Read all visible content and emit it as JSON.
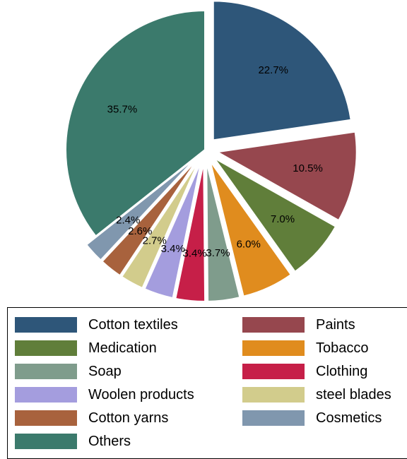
{
  "chart_data": {
    "type": "pie",
    "slices": [
      {
        "label": "Cotton textiles",
        "value": 22.7,
        "display": "22.7%",
        "color": "#2e5679",
        "explode": true
      },
      {
        "label": "Paints",
        "value": 10.5,
        "display": "10.5%",
        "color": "#96474e",
        "explode": true
      },
      {
        "label": "Medication",
        "value": 7.0,
        "display": "7.0%",
        "color": "#607e3a",
        "explode": true
      },
      {
        "label": "Tobacco",
        "value": 6.0,
        "display": "6.0%",
        "color": "#e08c1e",
        "explode": true
      },
      {
        "label": "Soap",
        "value": 3.7,
        "display": "3.7%",
        "color": "#7f9c8c",
        "explode": true
      },
      {
        "label": "Clothing",
        "value": 3.4,
        "display": "3.4%",
        "color": "#c61f48",
        "explode": true
      },
      {
        "label": "Woolen products",
        "value": 3.4,
        "display": "3.4%",
        "color": "#a49dde",
        "explode": true
      },
      {
        "label": "steel blades",
        "value": 2.7,
        "display": "2.7%",
        "color": "#d2cc8c",
        "explode": true
      },
      {
        "label": "Cotton yarns",
        "value": 2.6,
        "display": "2.6%",
        "color": "#a8623d",
        "explode": true
      },
      {
        "label": "Cosmetics",
        "value": 2.4,
        "display": "2.4%",
        "color": "#8097ae",
        "explode": true
      },
      {
        "label": "Others",
        "value": 35.7,
        "display": "35.7%",
        "color": "#3b7a6c",
        "explode": false
      }
    ],
    "legend": {
      "placement": "bottom",
      "columns": 2,
      "order": [
        "Cotton textiles",
        "Paints",
        "Medication",
        "Tobacco",
        "Soap",
        "Clothing",
        "Woolen products",
        "steel blades",
        "Cotton yarns",
        "Cosmetics",
        "Others"
      ]
    }
  }
}
